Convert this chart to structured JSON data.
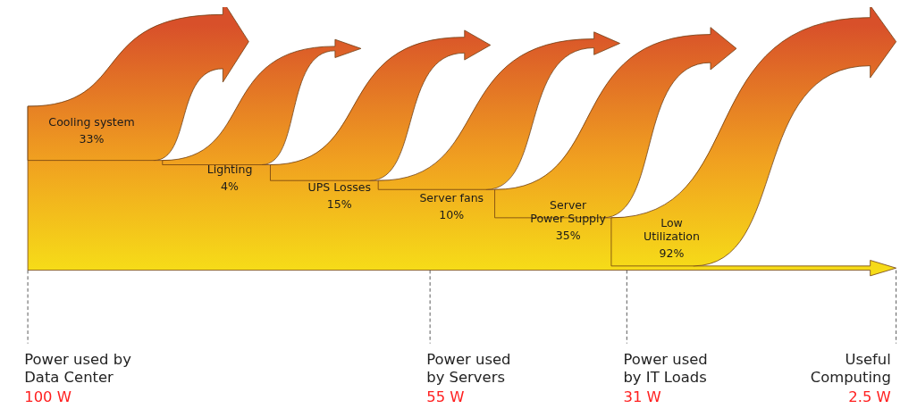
{
  "chart_data": {
    "type": "other",
    "categories": [
      "Cooling system",
      "Lighting",
      "UPS Losses",
      "Server fans",
      "Server\nPower Supply",
      "Low\nUtilization"
    ],
    "values": [
      33,
      4,
      15,
      10,
      35,
      92
    ],
    "value_labels": [
      "33%",
      "4%",
      "15%",
      "10%",
      "35%",
      "92%"
    ],
    "annotations": [
      "Power used by\nData Center",
      "100 W",
      "Power used\nby Servers",
      "55 W",
      "Power used\nby IT Loads",
      "31 W",
      "Useful\nComputing",
      "2.5 W"
    ]
  }
}
